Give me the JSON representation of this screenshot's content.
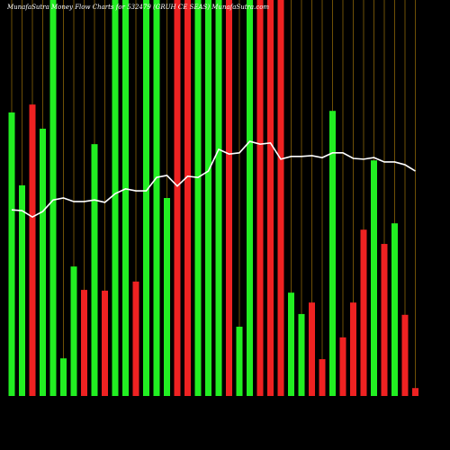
{
  "chart_data": {
    "type": "bar",
    "title": "MunafaSutra  Money Flow  Charts for 532479  (GRUH CE  SEAS) MunafaSutra.com",
    "categories": [
      null,
      null,
      null,
      null,
      null,
      null,
      null,
      null,
      null,
      null,
      null,
      null,
      null,
      null,
      null,
      null,
      null,
      null,
      null,
      null,
      null,
      null,
      null,
      null,
      null,
      null,
      null,
      null,
      null,
      null,
      null,
      null,
      null,
      null,
      null,
      null,
      null,
      null,
      null,
      null
    ],
    "values": [
      71.6,
      53.2,
      73.6,
      67.5,
      100,
      9.5,
      32.7,
      26.8,
      63.6,
      26.6,
      100,
      100,
      28.9,
      100,
      100,
      50,
      100,
      100,
      100,
      100,
      100,
      100,
      17.5,
      100,
      100,
      100,
      100,
      26.1,
      20.7,
      23.6,
      9.3,
      72,
      14.8,
      23.6,
      42,
      59.5,
      38.4,
      43.6,
      20.5,
      2
    ],
    "colors": [
      "#22ee22",
      "#22ee22",
      "#ee2222",
      "#22ee22",
      "#22ee22",
      "#22ee22",
      "#22ee22",
      "#ee2222",
      "#22ee22",
      "#ee2222",
      "#22ee22",
      "#22ee22",
      "#ee2222",
      "#22ee22",
      "#22ee22",
      "#22ee22",
      "#ee2222",
      "#ee2222",
      "#22ee22",
      "#22ee22",
      "#22ee22",
      "#ee2222",
      "#22ee22",
      "#22ee22",
      "#ee2222",
      "#ee2222",
      "#ee2222",
      "#22ee22",
      "#22ee22",
      "#ee2222",
      "#ee2222",
      "#22ee22",
      "#ee2222",
      "#ee2222",
      "#ee2222",
      "#22ee22",
      "#ee2222",
      "#22ee22",
      "#ee2222",
      "#ee2222"
    ],
    "line": {
      "color": "#ffffff",
      "axis": "y2",
      "values": [
        47,
        46.8,
        45.2,
        46.6,
        49.5,
        50,
        49.1,
        49.1,
        49.5,
        48.9,
        51.1,
        52.3,
        51.8,
        51.8,
        55.2,
        55.7,
        53,
        55.5,
        55.2,
        56.8,
        62.3,
        61.1,
        61.4,
        64.3,
        63.6,
        63.9,
        59.8,
        60.5,
        60.5,
        60.7,
        60.2,
        61.4,
        61.4,
        60,
        59.8,
        60.2,
        59.1,
        59.1,
        58.4,
        56.8
      ]
    },
    "ylim": [
      0,
      100
    ],
    "y2lim": [
      0,
      100
    ],
    "grid": true,
    "grid_color": "#b8860b"
  }
}
